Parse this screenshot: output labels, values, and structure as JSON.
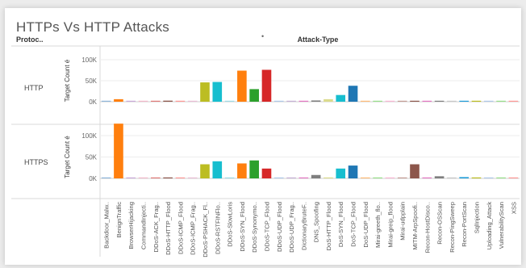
{
  "chart_data": {
    "type": "bar",
    "title": "HTTPs Vs HTTP Attacks",
    "row_header": "Protoc..",
    "column_header": "Attack-Type",
    "ylabel": "Target Count é",
    "ylim": [
      0,
      120000
    ],
    "yticks": [
      0,
      50000,
      100000
    ],
    "ytick_labels": [
      "0K",
      "50K",
      "100K"
    ],
    "categories": [
      "Backdoor_Malw..",
      "BenignTraffic",
      "BrowserHijacking",
      "CommandInjecti..",
      "DDoS-ACK_Frag..",
      "DDoS-HTTP_Flood",
      "DDoS-ICMP_Flood",
      "DDoS-ICMP_Frag..",
      "DDoS-PSHACK_Fl..",
      "DDoS-RSTFINFlo..",
      "DDoS-SlowLoris",
      "DDoS-SYN_Flood",
      "DDoS-Synonymo..",
      "DDoS-TCP_Flood",
      "DDoS-UDP_Flood",
      "DDoS-UDP_Frag..",
      "DictionaryBruteF..",
      "DNS_Spoofing",
      "DoS-HTTP_Flood",
      "DoS-SYN_Flood",
      "DoS-TCP_Flood",
      "DoS-UDP_Flood",
      "Mirai-greeth_flo..",
      "Mirai-greip_flood",
      "Mirai-udpplain",
      "MITM-ArpSpoofi..",
      "Recon-HostDisco..",
      "Recon-OSScan",
      "Recon-PingSweep",
      "Recon-PortScan",
      "SqlInjection",
      "Uploading_Attack",
      "VulnerabilityScan",
      "XSS"
    ],
    "colors": [
      "#8fb6d9",
      "#ff7f0e",
      "#c9a9d8",
      "#f1b8c9",
      "#e07a78",
      "#8c564b",
      "#ff9896",
      "#e9bdd5",
      "#bcbd22",
      "#17becf",
      "#9edae5",
      "#ff7f0e",
      "#2ca02c",
      "#d62728",
      "#aec7e8",
      "#c5b0d5",
      "#e377c2",
      "#7f7f7f",
      "#dbdb8d",
      "#17becf",
      "#1f77b4",
      "#ffbb78",
      "#98df8a",
      "#f7b6d2",
      "#c49c94",
      "#8c564b",
      "#e377c2",
      "#7f7f7f",
      "#c7c7c7",
      "#1f9dd9",
      "#bcbd22",
      "#aec7e8",
      "#98df8a",
      "#ff9896"
    ],
    "series": [
      {
        "name": "HTTP",
        "values": [
          300,
          6000,
          500,
          400,
          1000,
          2500,
          500,
          1000,
          46000,
          47000,
          500,
          74000,
          30000,
          76000,
          400,
          500,
          500,
          3000,
          6000,
          16000,
          38000,
          800,
          400,
          500,
          400,
          1000,
          800,
          700,
          400,
          600,
          400,
          400,
          400,
          400
        ]
      },
      {
        "name": "HTTPS",
        "values": [
          400,
          128000,
          500,
          400,
          1500,
          800,
          600,
          800,
          33000,
          40000,
          500,
          35000,
          42000,
          23000,
          500,
          600,
          800,
          8000,
          500,
          23000,
          30000,
          600,
          500,
          800,
          500,
          33000,
          1000,
          5000,
          1000,
          3000,
          500,
          400,
          400,
          400
        ]
      }
    ]
  }
}
